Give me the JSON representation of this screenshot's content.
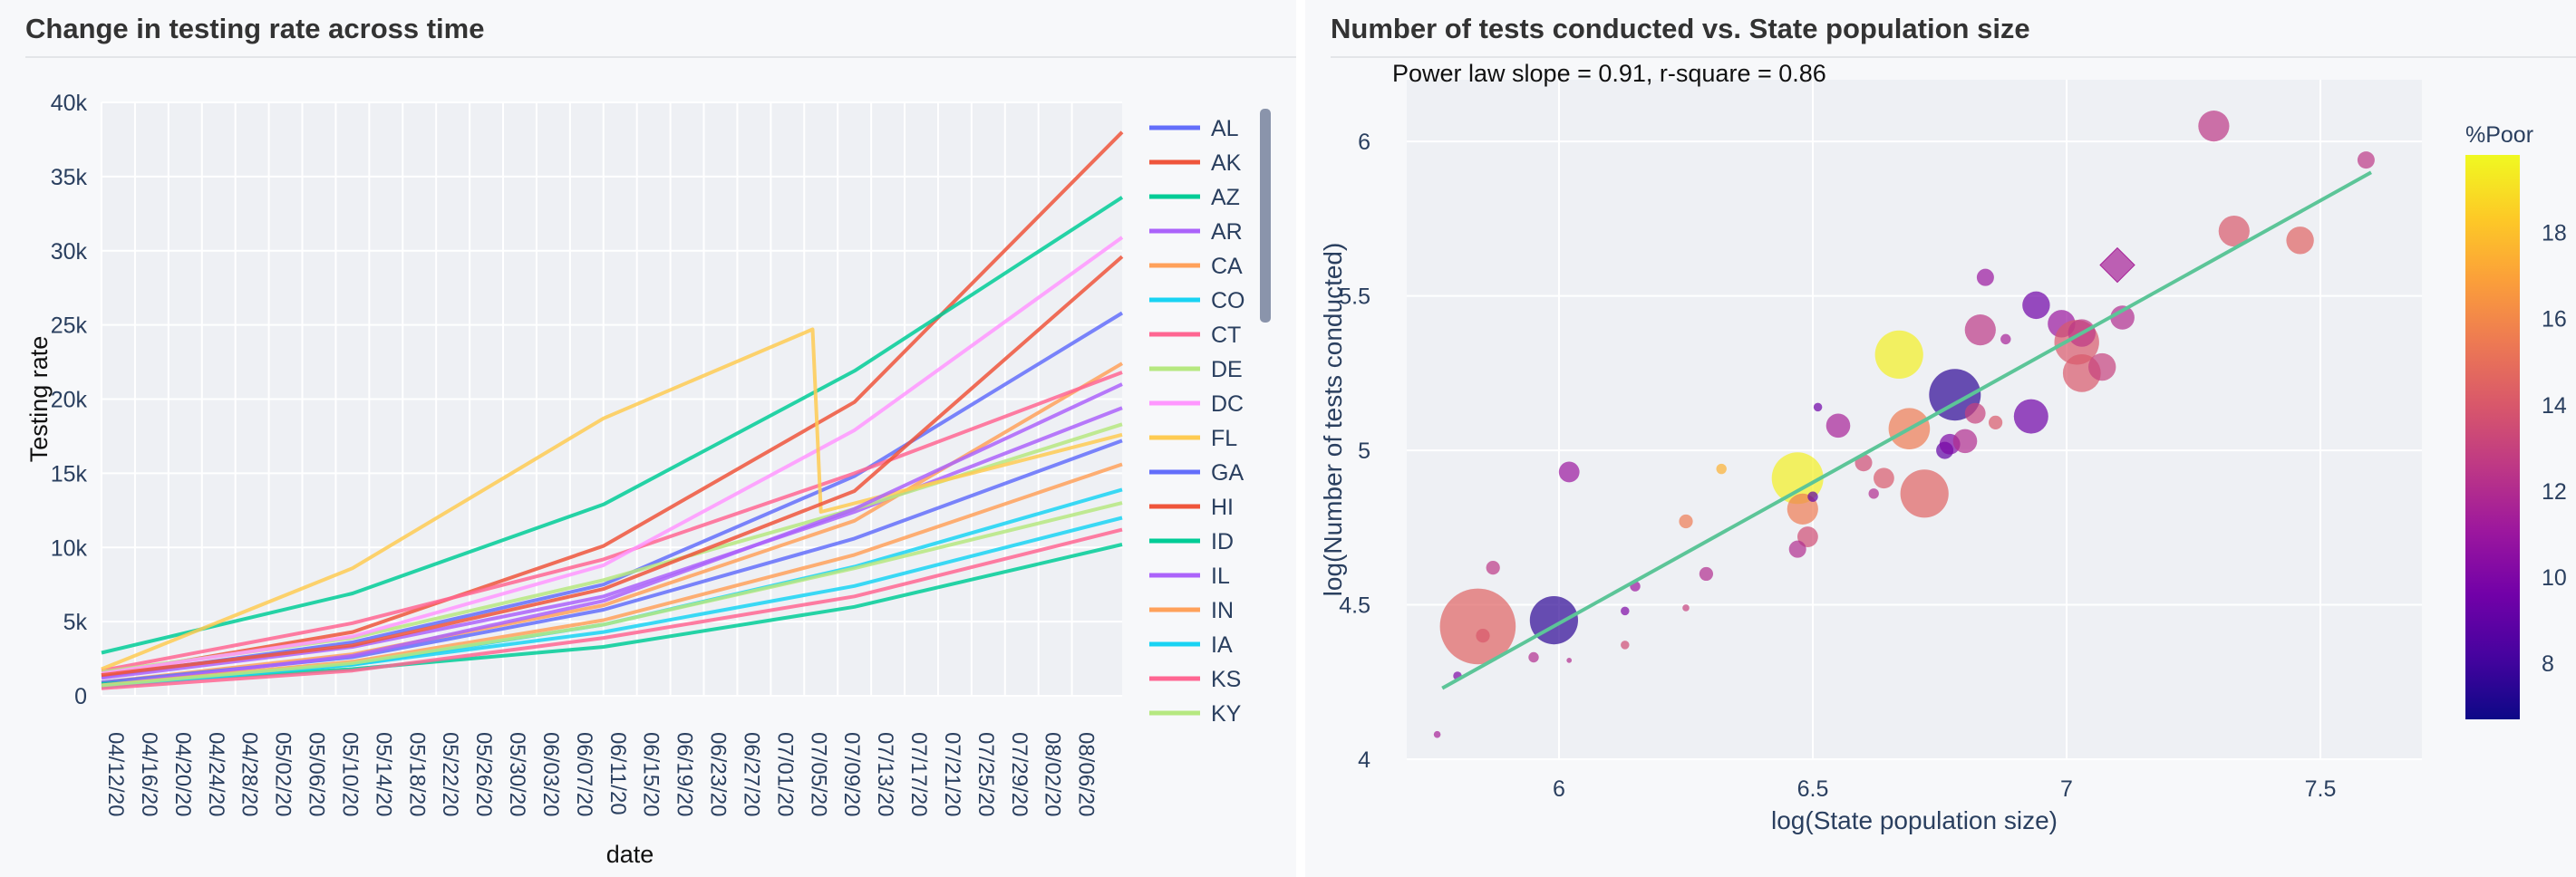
{
  "left_panel": {
    "title": "Change in testing rate across time"
  },
  "right_panel": {
    "title": "Number of tests conducted vs. State population size"
  },
  "colors": {
    "line_palette": [
      "#636efa",
      "#EF553B",
      "#00cc96",
      "#ab63fa",
      "#FFA15A",
      "#19d3f3",
      "#FF6692",
      "#B6E880",
      "#FF97FF",
      "#FECB52"
    ],
    "regression_line": "#5cc598",
    "grid": "#ffffff",
    "plot_bg": "#eef0f4"
  },
  "chart_data": [
    {
      "type": "line",
      "xlabel": "date",
      "ylabel": "Testing rate",
      "ylim": [
        0,
        40000
      ],
      "yticks": [
        0,
        5000,
        10000,
        15000,
        20000,
        25000,
        30000,
        35000,
        40000
      ],
      "ytick_labels": [
        "0",
        "5k",
        "10k",
        "15k",
        "20k",
        "25k",
        "30k",
        "35k",
        "40k"
      ],
      "xlim": [
        "04/12/20",
        "08/12/20"
      ],
      "xtick_labels": [
        "04/12/20",
        "04/16/20",
        "04/20/20",
        "04/24/20",
        "04/28/20",
        "05/02/20",
        "05/06/20",
        "05/10/20",
        "05/14/20",
        "05/18/20",
        "05/22/20",
        "05/26/20",
        "05/30/20",
        "06/03/20",
        "06/07/20",
        "06/11/20",
        "06/15/20",
        "06/19/20",
        "06/23/20",
        "06/27/20",
        "07/01/20",
        "07/05/20",
        "07/09/20",
        "07/13/20",
        "07/17/20",
        "07/21/20",
        "07/25/20",
        "07/29/20",
        "08/02/20",
        "08/06/20"
      ],
      "grid": true,
      "legend_position": "right (scrollable)",
      "series": [
        {
          "name": "AL",
          "x": [
            "04/12/20",
            "05/12/20",
            "06/11/20",
            "07/11/20",
            "08/12/20"
          ],
          "values": [
            1300,
            3600,
            7500,
            14800,
            25800
          ]
        },
        {
          "name": "AK",
          "x": [
            "04/12/20",
            "05/12/20",
            "06/11/20",
            "07/11/20",
            "08/12/20"
          ],
          "values": [
            1400,
            4300,
            10100,
            19800,
            38000
          ]
        },
        {
          "name": "AZ",
          "x": [
            "04/12/20",
            "05/12/20",
            "06/11/20",
            "07/11/20",
            "08/12/20"
          ],
          "values": [
            2900,
            6900,
            12900,
            21900,
            33600
          ]
        },
        {
          "name": "AR",
          "x": [
            "04/12/20",
            "05/12/20",
            "06/11/20",
            "07/11/20",
            "08/12/20"
          ],
          "values": [
            1200,
            3300,
            6700,
            12400,
            19400
          ]
        },
        {
          "name": "CA",
          "x": [
            "04/12/20",
            "05/12/20",
            "06/11/20",
            "07/11/20",
            "08/12/20"
          ],
          "values": [
            900,
            2800,
            6100,
            11800,
            22400
          ]
        },
        {
          "name": "CO",
          "x": [
            "04/12/20",
            "05/12/20",
            "06/11/20",
            "07/11/20",
            "08/12/20"
          ],
          "values": [
            800,
            2100,
            4300,
            7400,
            12000
          ]
        },
        {
          "name": "CT",
          "x": [
            "04/12/20",
            "05/12/20",
            "06/11/20",
            "07/11/20",
            "08/12/20"
          ],
          "values": [
            1700,
            4900,
            9200,
            15000,
            21800
          ]
        },
        {
          "name": "DE",
          "x": [
            "04/12/20",
            "05/12/20",
            "06/11/20",
            "07/11/20",
            "08/12/20"
          ],
          "values": [
            1600,
            3900,
            7800,
            12600,
            18300
          ]
        },
        {
          "name": "DC",
          "x": [
            "04/12/20",
            "05/12/20",
            "06/11/20",
            "07/11/20",
            "08/12/20"
          ],
          "values": [
            1500,
            4000,
            8800,
            17900,
            30900
          ]
        },
        {
          "name": "FL",
          "x": [
            "04/12/20",
            "05/12/20",
            "06/11/20",
            "07/06/20",
            "07/07/20",
            "08/12/20"
          ],
          "values": [
            1800,
            8600,
            18700,
            24700,
            12400,
            17600
          ]
        },
        {
          "name": "GA",
          "x": [
            "04/12/20",
            "05/12/20",
            "06/11/20",
            "07/11/20",
            "08/12/20"
          ],
          "values": [
            900,
            2600,
            5800,
            10600,
            17200
          ]
        },
        {
          "name": "HI",
          "x": [
            "04/12/20",
            "05/12/20",
            "06/11/20",
            "07/11/20",
            "08/12/20"
          ],
          "values": [
            1400,
            3400,
            7200,
            13800,
            29600
          ]
        },
        {
          "name": "ID",
          "x": [
            "04/12/20",
            "05/12/20",
            "06/11/20",
            "07/11/20",
            "08/12/20"
          ],
          "values": [
            800,
            1800,
            3300,
            6000,
            10200
          ]
        },
        {
          "name": "IL",
          "x": [
            "04/12/20",
            "05/12/20",
            "06/11/20",
            "07/11/20",
            "08/12/20"
          ],
          "values": [
            700,
            2700,
            6400,
            12600,
            21000
          ]
        },
        {
          "name": "IN",
          "x": [
            "04/12/20",
            "05/12/20",
            "06/11/20",
            "07/11/20",
            "08/12/20"
          ],
          "values": [
            700,
            2300,
            5100,
            9500,
            15600
          ]
        },
        {
          "name": "IA",
          "x": [
            "04/12/20",
            "05/12/20",
            "06/11/20",
            "07/11/20",
            "08/12/20"
          ],
          "values": [
            600,
            2100,
            4800,
            8700,
            13900
          ]
        },
        {
          "name": "KS",
          "x": [
            "04/12/20",
            "05/12/20",
            "06/11/20",
            "07/11/20",
            "08/12/20"
          ],
          "values": [
            500,
            1700,
            3900,
            6700,
            11200
          ]
        },
        {
          "name": "KY",
          "x": [
            "04/12/20",
            "05/12/20",
            "06/11/20",
            "07/11/20",
            "08/12/20"
          ],
          "values": [
            700,
            2200,
            4800,
            8600,
            13000
          ]
        }
      ]
    },
    {
      "type": "scatter",
      "annotation": "Power law slope = 0.91, r-square = 0.86",
      "xlabel": "log(State population size)",
      "ylabel": "log(Number of tests conducted)",
      "xlim": [
        5.7,
        7.7
      ],
      "ylim": [
        4.0,
        6.2
      ],
      "xticks": [
        6,
        6.5,
        7,
        7.5
      ],
      "xtick_labels": [
        "6",
        "6.5",
        "7",
        "7.5"
      ],
      "yticks": [
        4,
        4.5,
        5,
        5.5,
        6
      ],
      "ytick_labels": [
        "4",
        "4.5",
        "5",
        "5.5",
        "6"
      ],
      "grid": true,
      "trendline": {
        "x": [
          5.77,
          7.6
        ],
        "y": [
          4.23,
          5.9
        ]
      },
      "colorbar": {
        "title": "%Poor",
        "range": [
          6.7,
          19.8
        ],
        "ticks": [
          8,
          10,
          12,
          14,
          16,
          18
        ],
        "tick_labels": [
          "8",
          "10",
          "12",
          "14",
          "16",
          "18"
        ],
        "colorscale": [
          "#0d0887",
          "#46039f",
          "#7201a8",
          "#9c179e",
          "#bd3786",
          "#d8576b",
          "#ed7953",
          "#fb9f3a",
          "#fdca26",
          "#f0f921"
        ]
      },
      "points": [
        {
          "x": 5.84,
          "y": 4.43,
          "size": 22,
          "poor": 14.5,
          "symbol": "circle"
        },
        {
          "x": 5.99,
          "y": 4.45,
          "size": 14,
          "poor": 7.5,
          "symbol": "circle"
        },
        {
          "x": 5.87,
          "y": 4.62,
          "size": 4,
          "poor": 12.5,
          "symbol": "circle"
        },
        {
          "x": 5.85,
          "y": 4.4,
          "size": 4,
          "poor": 14.0,
          "symbol": "circle"
        },
        {
          "x": 6.02,
          "y": 4.93,
          "size": 6,
          "poor": 11.0,
          "symbol": "circle"
        },
        {
          "x": 5.8,
          "y": 4.27,
          "size": 2.5,
          "poor": 10.0,
          "symbol": "circle"
        },
        {
          "x": 5.76,
          "y": 4.08,
          "size": 2,
          "poor": 11.5,
          "symbol": "circle"
        },
        {
          "x": 5.95,
          "y": 4.33,
          "size": 3,
          "poor": 12.0,
          "symbol": "circle"
        },
        {
          "x": 6.02,
          "y": 4.32,
          "size": 1.5,
          "poor": 12.0,
          "symbol": "circle"
        },
        {
          "x": 6.13,
          "y": 4.37,
          "size": 2.5,
          "poor": 13.5,
          "symbol": "circle"
        },
        {
          "x": 6.13,
          "y": 4.48,
          "size": 2.5,
          "poor": 10.0,
          "symbol": "circle"
        },
        {
          "x": 6.15,
          "y": 4.56,
          "size": 3,
          "poor": 11.0,
          "symbol": "circle"
        },
        {
          "x": 6.25,
          "y": 4.49,
          "size": 2,
          "poor": 13.0,
          "symbol": "circle"
        },
        {
          "x": 6.29,
          "y": 4.6,
          "size": 4,
          "poor": 12.0,
          "symbol": "circle"
        },
        {
          "x": 6.25,
          "y": 4.77,
          "size": 4,
          "poor": 15.5,
          "symbol": "circle"
        },
        {
          "x": 6.32,
          "y": 4.94,
          "size": 3,
          "poor": 17.5,
          "symbol": "circle"
        },
        {
          "x": 6.47,
          "y": 4.91,
          "size": 15,
          "poor": 19.5,
          "symbol": "circle"
        },
        {
          "x": 6.48,
          "y": 4.81,
          "size": 9,
          "poor": 15.5,
          "symbol": "circle"
        },
        {
          "x": 6.49,
          "y": 4.72,
          "size": 6,
          "poor": 13.5,
          "symbol": "circle"
        },
        {
          "x": 6.47,
          "y": 4.68,
          "size": 5,
          "poor": 12.0,
          "symbol": "circle"
        },
        {
          "x": 6.5,
          "y": 4.85,
          "size": 3,
          "poor": 9.0,
          "symbol": "circle"
        },
        {
          "x": 6.55,
          "y": 5.08,
          "size": 7,
          "poor": 11.5,
          "symbol": "circle"
        },
        {
          "x": 6.51,
          "y": 5.14,
          "size": 2.5,
          "poor": 9.5,
          "symbol": "circle"
        },
        {
          "x": 6.6,
          "y": 4.96,
          "size": 5,
          "poor": 13.5,
          "symbol": "circle"
        },
        {
          "x": 6.62,
          "y": 4.86,
          "size": 3,
          "poor": 12.0,
          "symbol": "circle"
        },
        {
          "x": 6.64,
          "y": 4.91,
          "size": 6,
          "poor": 14.0,
          "symbol": "circle"
        },
        {
          "x": 6.67,
          "y": 5.31,
          "size": 14,
          "poor": 19.5,
          "symbol": "circle"
        },
        {
          "x": 6.69,
          "y": 5.07,
          "size": 12,
          "poor": 15.5,
          "symbol": "circle"
        },
        {
          "x": 6.72,
          "y": 4.86,
          "size": 14,
          "poor": 14.5,
          "symbol": "circle"
        },
        {
          "x": 6.76,
          "y": 5.0,
          "size": 5,
          "poor": 9.0,
          "symbol": "circle"
        },
        {
          "x": 6.78,
          "y": 5.18,
          "size": 15,
          "poor": 7.5,
          "symbol": "circle"
        },
        {
          "x": 6.77,
          "y": 5.02,
          "size": 6,
          "poor": 10.0,
          "symbol": "circle"
        },
        {
          "x": 6.8,
          "y": 5.03,
          "size": 7,
          "poor": 12.0,
          "symbol": "circle"
        },
        {
          "x": 6.82,
          "y": 5.12,
          "size": 6,
          "poor": 13.0,
          "symbol": "circle"
        },
        {
          "x": 6.83,
          "y": 5.39,
          "size": 9,
          "poor": 12.5,
          "symbol": "circle"
        },
        {
          "x": 6.84,
          "y": 5.56,
          "size": 5,
          "poor": 11.0,
          "symbol": "circle"
        },
        {
          "x": 6.86,
          "y": 5.09,
          "size": 4,
          "poor": 14.0,
          "symbol": "circle"
        },
        {
          "x": 6.88,
          "y": 5.36,
          "size": 3,
          "poor": 11.5,
          "symbol": "circle"
        },
        {
          "x": 6.93,
          "y": 5.11,
          "size": 10,
          "poor": 9.5,
          "symbol": "circle"
        },
        {
          "x": 6.94,
          "y": 5.47,
          "size": 8,
          "poor": 9.5,
          "symbol": "circle"
        },
        {
          "x": 6.99,
          "y": 5.41,
          "size": 8,
          "poor": 11.0,
          "symbol": "circle"
        },
        {
          "x": 7.02,
          "y": 5.35,
          "size": 13,
          "poor": 14.0,
          "symbol": "circle"
        },
        {
          "x": 7.03,
          "y": 5.25,
          "size": 11,
          "poor": 14.0,
          "symbol": "circle"
        },
        {
          "x": 7.03,
          "y": 5.38,
          "size": 8,
          "poor": 12.5,
          "symbol": "circle"
        },
        {
          "x": 7.07,
          "y": 5.27,
          "size": 8,
          "poor": 13.0,
          "symbol": "circle"
        },
        {
          "x": 7.1,
          "y": 5.6,
          "size": 10,
          "poor": 11.5,
          "symbol": "diamond"
        },
        {
          "x": 7.11,
          "y": 5.43,
          "size": 7,
          "poor": 12.0,
          "symbol": "circle"
        },
        {
          "x": 7.29,
          "y": 6.05,
          "size": 9,
          "poor": 12.5,
          "symbol": "circle"
        },
        {
          "x": 7.33,
          "y": 5.71,
          "size": 9,
          "poor": 14.0,
          "symbol": "circle"
        },
        {
          "x": 7.46,
          "y": 5.68,
          "size": 8,
          "poor": 14.5,
          "symbol": "circle"
        },
        {
          "x": 7.59,
          "y": 5.94,
          "size": 5,
          "poor": 12.5,
          "symbol": "circle"
        }
      ]
    }
  ]
}
